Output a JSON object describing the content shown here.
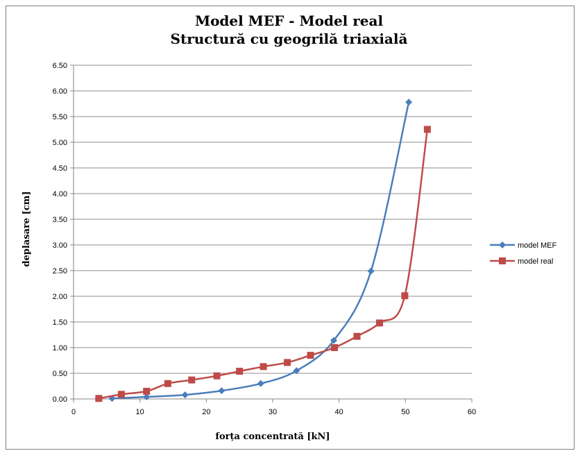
{
  "chart_data": {
    "type": "line",
    "title": "Model MEF - Model real",
    "subtitle": "Structură cu geogrilă triaxială",
    "xlabel": "forța concentrată [kN]",
    "ylabel": "deplasare [cm]",
    "xlim": [
      0,
      60
    ],
    "ylim": [
      0,
      6.5
    ],
    "xticks": [
      "0",
      "10",
      "20",
      "30",
      "40",
      "50",
      "60"
    ],
    "yticks": [
      "0.00",
      "0.50",
      "1.00",
      "1.50",
      "2.00",
      "2.50",
      "3.00",
      "3.50",
      "4.00",
      "4.50",
      "5.00",
      "5.50",
      "6.00",
      "6.50"
    ],
    "grid": "horizontal",
    "legend_position": "right",
    "series": [
      {
        "name": "model MEF",
        "color": "#4a7ebb",
        "marker": "diamond",
        "points": [
          [
            5.8,
            0.01
          ],
          [
            11.0,
            0.04
          ],
          [
            16.8,
            0.08
          ],
          [
            22.3,
            0.16
          ],
          [
            28.2,
            0.3
          ],
          [
            33.6,
            0.55
          ],
          [
            39.2,
            1.14
          ],
          [
            44.8,
            2.49
          ],
          [
            50.5,
            5.78
          ]
        ]
      },
      {
        "name": "model real",
        "color": "#be4b48",
        "marker": "square",
        "points": [
          [
            3.8,
            0.01
          ],
          [
            7.2,
            0.09
          ],
          [
            11.0,
            0.15
          ],
          [
            14.2,
            0.3
          ],
          [
            17.8,
            0.37
          ],
          [
            21.6,
            0.45
          ],
          [
            25.0,
            0.54
          ],
          [
            28.6,
            0.63
          ],
          [
            32.2,
            0.71
          ],
          [
            35.7,
            0.85
          ],
          [
            39.3,
            1.0
          ],
          [
            42.7,
            1.22
          ],
          [
            46.1,
            1.48
          ],
          [
            49.9,
            2.01
          ],
          [
            53.3,
            5.25
          ]
        ]
      }
    ]
  }
}
